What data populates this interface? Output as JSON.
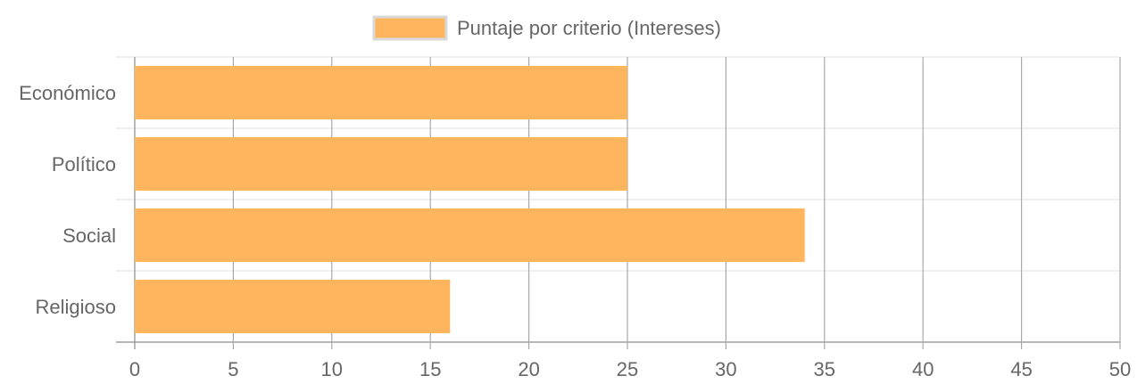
{
  "chart_data": {
    "type": "bar",
    "orientation": "horizontal",
    "categories": [
      "Económico",
      "Político",
      "Social",
      "Religioso"
    ],
    "series": [
      {
        "name": "Puntaje por criterio (Intereses)",
        "values": [
          25,
          25,
          34,
          16
        ]
      }
    ],
    "xlim": [
      0,
      50
    ],
    "x_ticks": [
      0,
      5,
      10,
      15,
      20,
      25,
      30,
      35,
      40,
      45,
      50
    ],
    "legend_position": "top",
    "grid": true,
    "colors": {
      "bar_fill": "#ffb45e",
      "legend_border": "#d9d9d9",
      "vertical_grid": "#a8a8a8",
      "horizontal_grid": "#e2e2e2",
      "axis_line": "#8c8c8c"
    }
  }
}
